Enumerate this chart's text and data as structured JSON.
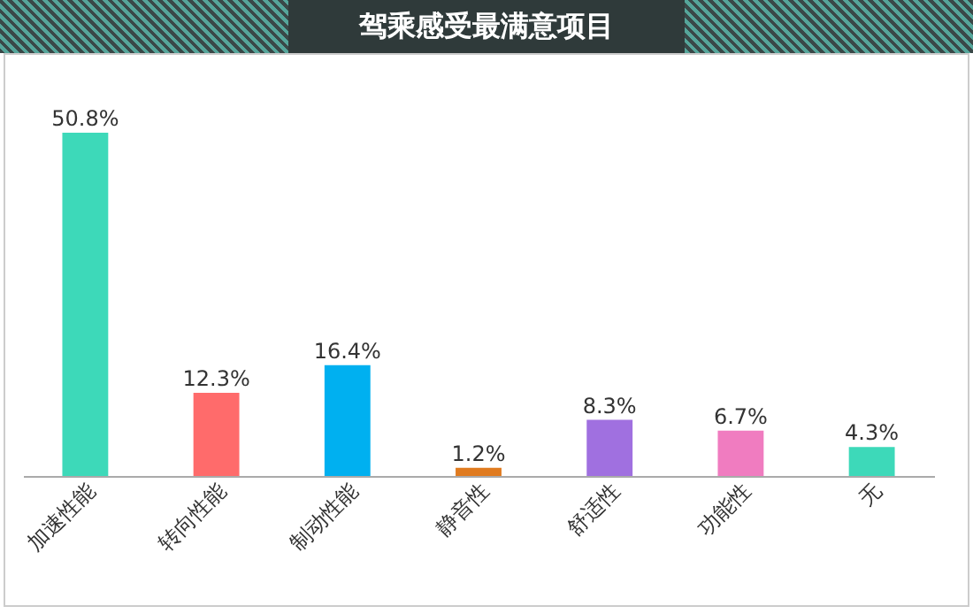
{
  "chart_data": {
    "type": "bar",
    "title": "驾乘感受最满意项目",
    "categories": [
      "加速性能",
      "转向性能",
      "制动性能",
      "静音性",
      "舒适性",
      "功能性",
      "无"
    ],
    "values": [
      50.8,
      12.3,
      16.4,
      1.2,
      8.3,
      6.7,
      4.3
    ],
    "colors": [
      "#3dd9b9",
      "#ff6b6b",
      "#00b0f0",
      "#e07b20",
      "#a070e0",
      "#f07cc0",
      "#3dd9b9"
    ],
    "value_labels": [
      "50.8%",
      "12.3%",
      "16.4%",
      "1.2%",
      "8.3%",
      "6.7%",
      "4.3%"
    ],
    "data_labels": true
  }
}
